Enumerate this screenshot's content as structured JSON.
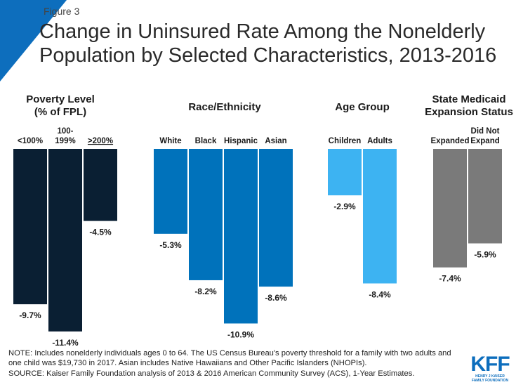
{
  "figure_label": "Figure 3",
  "title": "Change in Uninsured Rate Among the Nonelderly Population by Selected Characteristics, 2013-2016",
  "colors": {
    "poverty": "#0a1f33",
    "race": "#0072bb",
    "age": "#3db3f2",
    "medicaid": "#7a7a7a",
    "accent": "#0d6ebd"
  },
  "chart_data": [
    {
      "type": "bar",
      "title_lines": [
        "Poverty Level",
        "(% of FPL)"
      ],
      "categories": [
        [
          "<100%"
        ],
        [
          "100-",
          "199%"
        ],
        [
          ">200%"
        ]
      ],
      "values": [
        -9.7,
        -11.4,
        -4.5
      ],
      "labels": [
        "-9.7%",
        "-11.4%",
        "-4.5%"
      ],
      "color_key": "poverty"
    },
    {
      "type": "bar",
      "title_lines": [
        "Race/Ethnicity"
      ],
      "categories": [
        [
          "White"
        ],
        [
          "Black"
        ],
        [
          "Hispanic"
        ],
        [
          "Asian"
        ]
      ],
      "values": [
        -5.3,
        -8.2,
        -10.9,
        -8.6
      ],
      "labels": [
        "-5.3%",
        "-8.2%",
        "-10.9%",
        "-8.6%"
      ],
      "color_key": "race"
    },
    {
      "type": "bar",
      "title_lines": [
        "Age Group"
      ],
      "categories": [
        [
          "Children"
        ],
        [
          "Adults"
        ]
      ],
      "values": [
        -2.9,
        -8.4
      ],
      "labels": [
        "-2.9%",
        "-8.4%"
      ],
      "color_key": "age"
    },
    {
      "type": "bar",
      "title_lines": [
        "State Medicaid",
        "Expansion Status"
      ],
      "categories": [
        [
          "Expanded"
        ],
        [
          "Did Not",
          "Expand"
        ]
      ],
      "values": [
        -7.4,
        -5.9
      ],
      "labels": [
        "-7.4%",
        "-5.9%"
      ],
      "color_key": "medicaid"
    }
  ],
  "note_lines": [
    "NOTE: Includes nonelderly individuals ages 0 to 64. The US Census Bureau's poverty threshold for a family with two adults and",
    "one child was $19,730 in 2017. Asian includes Native Hawaiians and Other Pacific Islanders (NHOPIs).",
    "SOURCE: Kaiser Family Foundation analysis of 2013 & 2016 American Community Survey (ACS), 1-Year Estimates."
  ],
  "logo": {
    "main": "KFF",
    "sub_lines": [
      "HENRY J KAISER",
      "FAMILY FOUNDATION"
    ]
  }
}
